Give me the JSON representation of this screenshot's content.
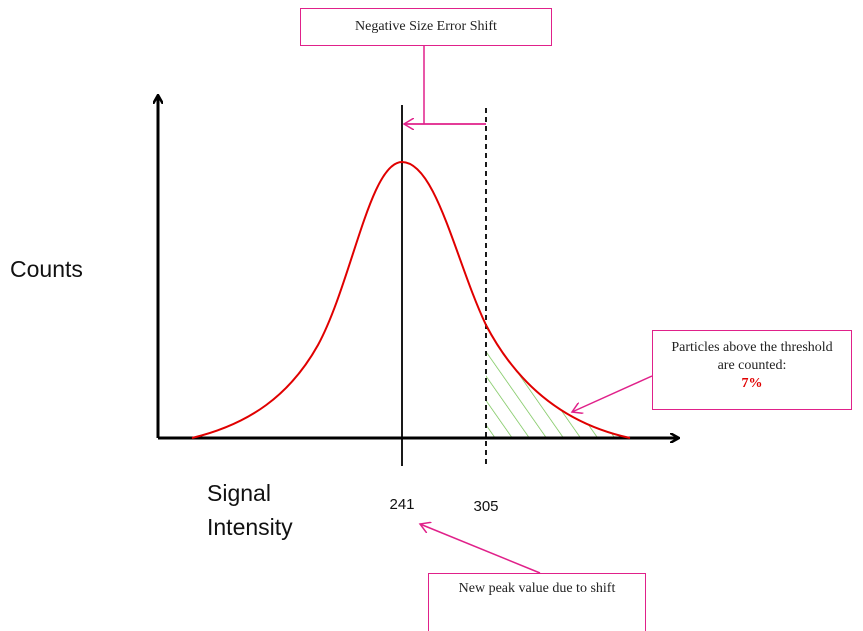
{
  "top_box": {
    "text": "Negative Size Error Shift"
  },
  "y_axis_label": "Counts",
  "x_axis_label": "Signal Intensity",
  "markers": {
    "peak": 241,
    "threshold": 305
  },
  "right_box": {
    "text": "Particles above the threshold are counted:",
    "percent": "7%"
  },
  "bottom_box": {
    "text": "New peak value due to shift"
  }
}
